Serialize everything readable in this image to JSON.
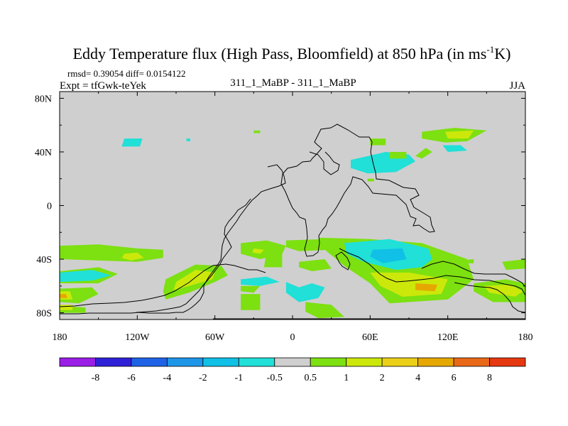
{
  "chart_data": {
    "type": "heatmap",
    "title": "Eddy Temperature flux (High Pass, Bloomfield) at 850 hPa (in ms",
    "title_sup": "-1",
    "title_end": "K)",
    "stats_text": "rmsd= 0.39054  diff= 0.0154122",
    "expt_text": "Expt = tfGwk-teYek",
    "experiment_label": "311_1_MaBP - 311_1_MaBP",
    "season_label": "JJA",
    "x_ticks": [
      {
        "value": -180,
        "label": "180"
      },
      {
        "value": -120,
        "label": "120W"
      },
      {
        "value": -60,
        "label": "60W"
      },
      {
        "value": 0,
        "label": "0"
      },
      {
        "value": 60,
        "label": "60E"
      },
      {
        "value": 120,
        "label": "120E"
      },
      {
        "value": 180,
        "label": "180"
      }
    ],
    "y_ticks": [
      {
        "value": 80,
        "label": "80N"
      },
      {
        "value": 40,
        "label": "40N"
      },
      {
        "value": 0,
        "label": "0"
      },
      {
        "value": -40,
        "label": "40S"
      },
      {
        "value": -80,
        "label": "80S"
      }
    ],
    "xlim": [
      -180,
      180
    ],
    "ylim": [
      -85,
      85
    ],
    "colorbar": {
      "colors": [
        "#9a1ee6",
        "#3020d8",
        "#1f62e6",
        "#1e96e8",
        "#10c0e6",
        "#20e0d8",
        "#cfcfcf",
        "#7de010",
        "#cce80a",
        "#ecd018",
        "#e6a800",
        "#e86818",
        "#e63810"
      ],
      "labels": [
        "-8",
        "-6",
        "-4",
        "-2",
        "-1",
        "-0.5",
        "0.5",
        "1",
        "2",
        "4",
        "6",
        "8"
      ]
    },
    "regions": [
      {
        "level": 1,
        "polygon": [
          [
            -180,
            -30
          ],
          [
            -150,
            -29
          ],
          [
            -120,
            -32
          ],
          [
            -100,
            -33
          ],
          [
            -100,
            -39
          ],
          [
            -120,
            -42
          ],
          [
            -150,
            -41
          ],
          [
            -180,
            -40
          ]
        ]
      },
      {
        "level": 2,
        "polygon": [
          [
            -130,
            -36
          ],
          [
            -120,
            -35
          ],
          [
            -115,
            -39
          ],
          [
            -125,
            -41
          ],
          [
            -132,
            -39
          ]
        ]
      },
      {
        "level": 1,
        "polygon": [
          [
            -180,
            -49
          ],
          [
            -150,
            -46
          ],
          [
            -135,
            -51
          ],
          [
            -150,
            -58
          ],
          [
            -180,
            -58
          ]
        ]
      },
      {
        "level": -1,
        "polygon": [
          [
            -180,
            -50
          ],
          [
            -155,
            -48
          ],
          [
            -140,
            -52
          ],
          [
            -155,
            -56
          ],
          [
            -180,
            -57
          ]
        ]
      },
      {
        "level": 1,
        "polygon": [
          [
            -180,
            -62
          ],
          [
            -155,
            -61
          ],
          [
            -150,
            -66
          ],
          [
            -165,
            -73
          ],
          [
            -180,
            -72
          ]
        ]
      },
      {
        "level": 2,
        "polygon": [
          [
            -180,
            -64
          ],
          [
            -172,
            -64
          ],
          [
            -170,
            -70
          ],
          [
            -180,
            -70
          ]
        ]
      },
      {
        "level": 4,
        "polygon": [
          [
            -180,
            -66
          ],
          [
            -175,
            -66
          ],
          [
            -174,
            -69
          ],
          [
            -180,
            -69
          ]
        ]
      },
      {
        "level": 1,
        "polygon": [
          [
            -98,
            -55
          ],
          [
            -75,
            -44
          ],
          [
            -55,
            -45
          ],
          [
            -50,
            -52
          ],
          [
            -60,
            -57
          ],
          [
            -80,
            -65
          ],
          [
            -98,
            -70
          ],
          [
            -100,
            -64
          ]
        ]
      },
      {
        "level": 2,
        "polygon": [
          [
            -90,
            -57
          ],
          [
            -75,
            -48
          ],
          [
            -60,
            -50
          ],
          [
            -62,
            -55
          ],
          [
            -80,
            -60
          ],
          [
            -92,
            -63
          ]
        ]
      },
      {
        "level": 1,
        "polygon": [
          [
            -40,
            -28
          ],
          [
            -20,
            -26
          ],
          [
            -5,
            -30
          ],
          [
            -8,
            -36
          ],
          [
            -25,
            -40
          ],
          [
            -40,
            -36
          ]
        ]
      },
      {
        "level": 2,
        "polygon": [
          [
            -30,
            -32
          ],
          [
            -22,
            -33
          ],
          [
            -25,
            -36
          ],
          [
            -31,
            -35
          ]
        ]
      },
      {
        "level": 1,
        "polygon": [
          [
            -20,
            -34
          ],
          [
            -8,
            -34
          ],
          [
            -8,
            -46
          ],
          [
            -22,
            -46
          ]
        ]
      },
      {
        "level": 1,
        "polygon": [
          [
            -5,
            -26
          ],
          [
            25,
            -25
          ],
          [
            40,
            -28
          ],
          [
            30,
            -33
          ],
          [
            5,
            -34
          ],
          [
            -5,
            -31
          ]
        ]
      },
      {
        "level": 1,
        "polygon": [
          [
            5,
            -42
          ],
          [
            25,
            -40
          ],
          [
            30,
            -47
          ],
          [
            15,
            -49
          ],
          [
            5,
            -46
          ]
        ]
      },
      {
        "level": 1,
        "polygon": [
          [
            -40,
            -60
          ],
          [
            -25,
            -60
          ],
          [
            -30,
            -65
          ],
          [
            -40,
            -64
          ]
        ]
      },
      {
        "level": -1,
        "polygon": [
          [
            -40,
            -55
          ],
          [
            -20,
            -53
          ],
          [
            -10,
            -57
          ],
          [
            -25,
            -60
          ],
          [
            -40,
            -59
          ]
        ]
      },
      {
        "level": -1,
        "polygon": [
          [
            -5,
            -57
          ],
          [
            5,
            -61
          ],
          [
            15,
            -58
          ],
          [
            25,
            -61
          ],
          [
            20,
            -69
          ],
          [
            5,
            -72
          ],
          [
            -5,
            -65
          ]
        ]
      },
      {
        "level": 1,
        "polygon": [
          [
            -40,
            -66
          ],
          [
            -25,
            -66
          ],
          [
            -25,
            -78
          ],
          [
            -40,
            -78
          ]
        ]
      },
      {
        "level": 1,
        "polygon": [
          [
            10,
            -72
          ],
          [
            30,
            -74
          ],
          [
            40,
            -83
          ],
          [
            20,
            -84
          ],
          [
            10,
            -79
          ]
        ]
      },
      {
        "level": 1,
        "polygon": [
          [
            20,
            -24
          ],
          [
            60,
            -25
          ],
          [
            100,
            -28
          ],
          [
            135,
            -40
          ],
          [
            140,
            -55
          ],
          [
            120,
            -70
          ],
          [
            75,
            -73
          ],
          [
            60,
            -58
          ],
          [
            40,
            -45
          ],
          [
            25,
            -33
          ]
        ]
      },
      {
        "level": 2,
        "polygon": [
          [
            60,
            -50
          ],
          [
            90,
            -50
          ],
          [
            120,
            -55
          ],
          [
            115,
            -66
          ],
          [
            85,
            -68
          ],
          [
            68,
            -60
          ]
        ]
      },
      {
        "level": 4,
        "polygon": [
          [
            95,
            -58
          ],
          [
            112,
            -59
          ],
          [
            110,
            -64
          ],
          [
            95,
            -63
          ]
        ]
      },
      {
        "level": -1,
        "polygon": [
          [
            40,
            -28
          ],
          [
            75,
            -25
          ],
          [
            105,
            -32
          ],
          [
            108,
            -40
          ],
          [
            100,
            -46
          ],
          [
            80,
            -48
          ],
          [
            55,
            -42
          ],
          [
            42,
            -36
          ]
        ]
      },
      {
        "level": -2,
        "polygon": [
          [
            62,
            -33
          ],
          [
            85,
            -32
          ],
          [
            88,
            -40
          ],
          [
            70,
            -43
          ],
          [
            60,
            -38
          ]
        ]
      },
      {
        "level": 1,
        "polygon": [
          [
            140,
            -58
          ],
          [
            165,
            -55
          ],
          [
            180,
            -58
          ],
          [
            180,
            -72
          ],
          [
            155,
            -72
          ],
          [
            140,
            -64
          ]
        ]
      },
      {
        "level": 2,
        "polygon": [
          [
            148,
            -60
          ],
          [
            168,
            -59
          ],
          [
            178,
            -64
          ],
          [
            172,
            -68
          ],
          [
            152,
            -65
          ]
        ]
      },
      {
        "level": 1,
        "polygon": [
          [
            162,
            -42
          ],
          [
            180,
            -40
          ],
          [
            180,
            -47
          ],
          [
            165,
            -48
          ]
        ]
      },
      {
        "level": 1,
        "polygon": [
          [
            130,
            -41
          ],
          [
            140,
            -40
          ],
          [
            140,
            -43
          ],
          [
            130,
            -43
          ]
        ]
      },
      {
        "level": 1,
        "polygon": [
          [
            -180,
            -75
          ],
          [
            -160,
            -76
          ],
          [
            -160,
            -80
          ],
          [
            -180,
            -80
          ]
        ]
      },
      {
        "level": 2,
        "polygon": [
          [
            -180,
            -74
          ],
          [
            -170,
            -74
          ],
          [
            -170,
            -78
          ],
          [
            -180,
            -78
          ]
        ]
      },
      {
        "level": -1,
        "polygon": [
          [
            -132,
            44
          ],
          [
            -118,
            44
          ],
          [
            -116,
            50
          ],
          [
            -130,
            50
          ]
        ]
      },
      {
        "level": -1,
        "polygon": [
          [
            -82,
            48
          ],
          [
            -79,
            48
          ],
          [
            -79,
            50
          ],
          [
            -82,
            50
          ]
        ]
      },
      {
        "level": -1,
        "polygon": [
          [
            45,
            34
          ],
          [
            72,
            40
          ],
          [
            90,
            38
          ],
          [
            95,
            33
          ],
          [
            80,
            25
          ],
          [
            58,
            24
          ],
          [
            45,
            28
          ]
        ]
      },
      {
        "level": 1,
        "polygon": [
          [
            95,
            37
          ],
          [
            103,
            43
          ],
          [
            108,
            40
          ],
          [
            100,
            35
          ]
        ]
      },
      {
        "level": 1,
        "polygon": [
          [
            100,
            55
          ],
          [
            125,
            58
          ],
          [
            150,
            56
          ],
          [
            135,
            48
          ],
          [
            118,
            47
          ],
          [
            100,
            50
          ]
        ]
      },
      {
        "level": 2,
        "polygon": [
          [
            118,
            55
          ],
          [
            140,
            56
          ],
          [
            136,
            50
          ],
          [
            120,
            50
          ]
        ]
      },
      {
        "level": -1,
        "polygon": [
          [
            116,
            45
          ],
          [
            130,
            45
          ],
          [
            135,
            41
          ],
          [
            120,
            40
          ]
        ]
      },
      {
        "level": 1,
        "polygon": [
          [
            60,
            50
          ],
          [
            72,
            50
          ],
          [
            72,
            45
          ],
          [
            60,
            45
          ]
        ]
      },
      {
        "level": 1,
        "polygon": [
          [
            75,
            40
          ],
          [
            88,
            40
          ],
          [
            88,
            35
          ],
          [
            75,
            35
          ]
        ]
      },
      {
        "level": 1,
        "polygon": [
          [
            58,
            20
          ],
          [
            63,
            20
          ],
          [
            63,
            18
          ],
          [
            58,
            18
          ]
        ]
      },
      {
        "level": 1,
        "polygon": [
          [
            -30,
            56
          ],
          [
            -25,
            56
          ],
          [
            -25,
            54
          ],
          [
            -30,
            54
          ]
        ]
      }
    ]
  }
}
